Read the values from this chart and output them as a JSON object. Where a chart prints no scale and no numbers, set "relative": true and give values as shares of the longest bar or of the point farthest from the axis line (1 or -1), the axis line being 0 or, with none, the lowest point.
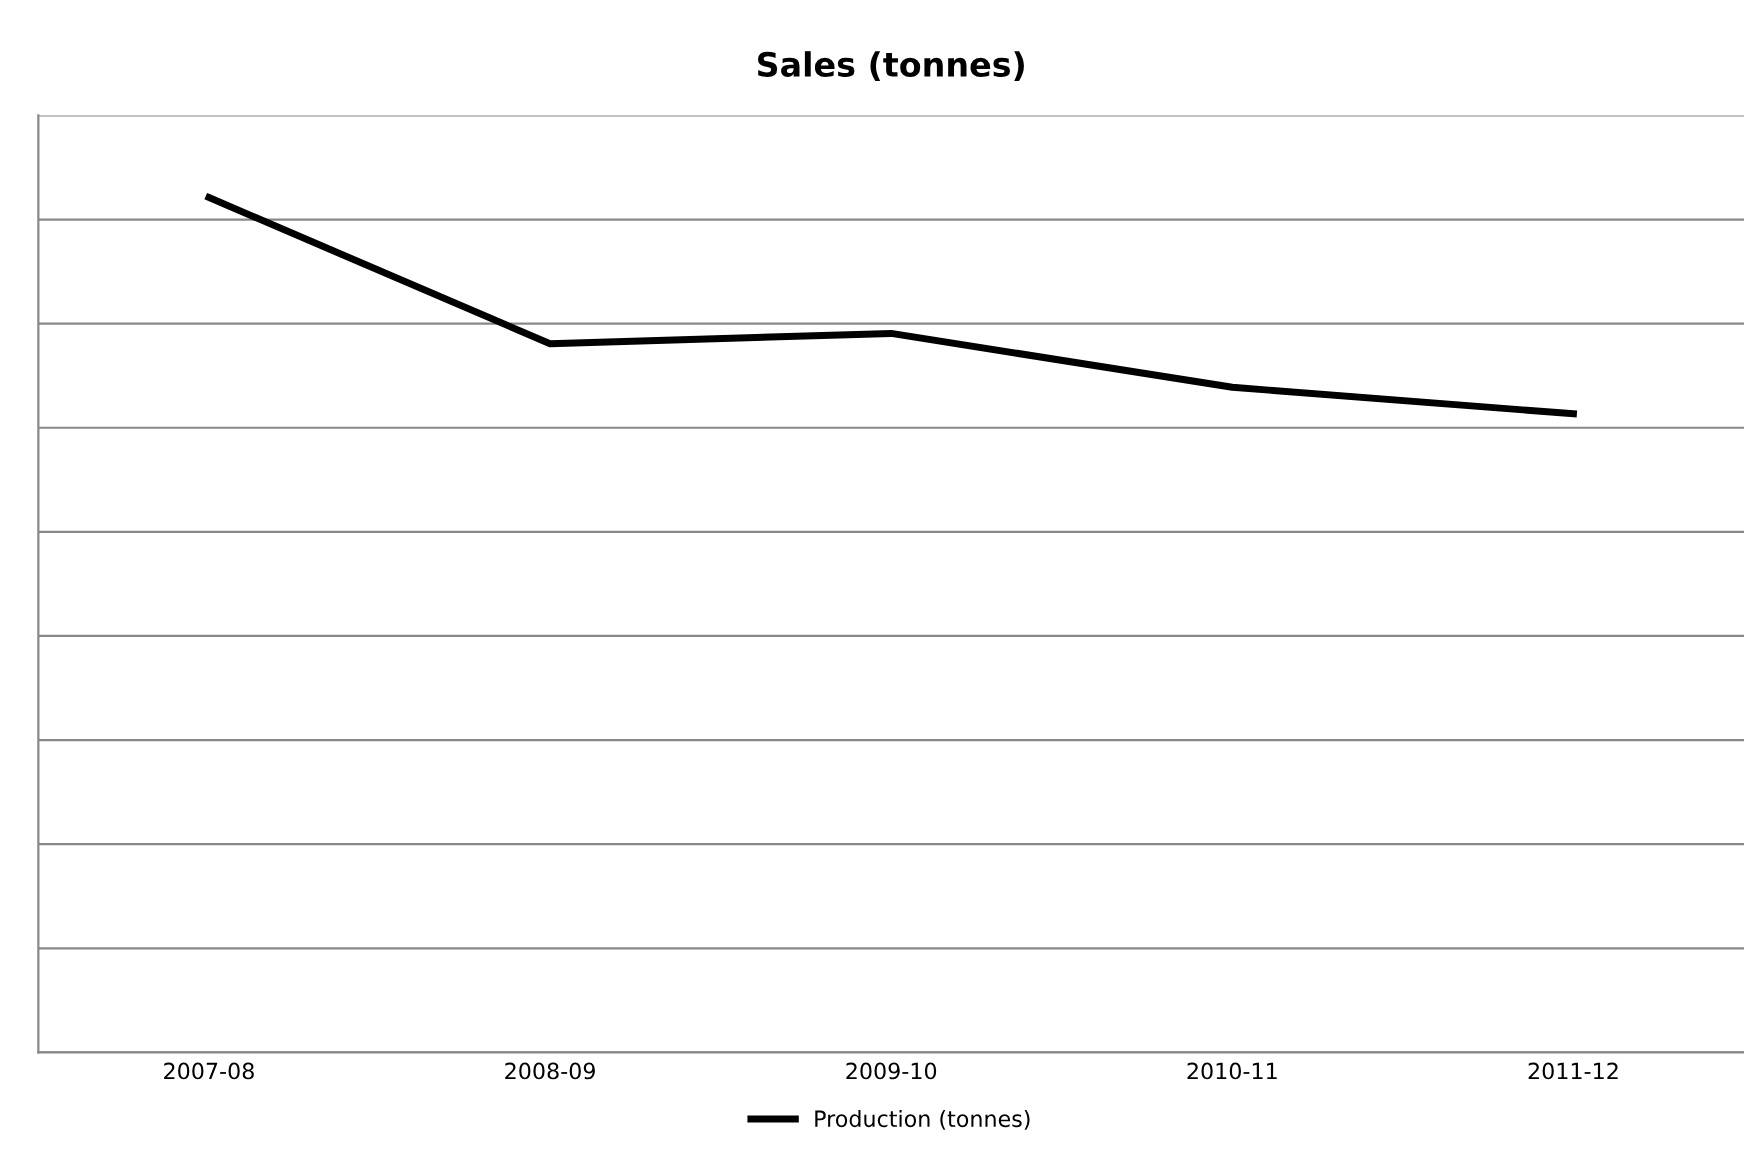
{
  "chart_data": {
    "type": "line",
    "title": "Sales (tonnes)",
    "relative": true,
    "categories": [
      "2007-08",
      "2008-09",
      "2009-10",
      "2010-11",
      "2011-12"
    ],
    "series": [
      {
        "name": "Production (tonnes)",
        "color": "#000000",
        "values": [
          1,
          0.829,
          0.841,
          0.778,
          0.747
        ]
      }
    ],
    "grid": "y",
    "legend": "bottom",
    "marker": "none",
    "line_style": "solid"
  }
}
